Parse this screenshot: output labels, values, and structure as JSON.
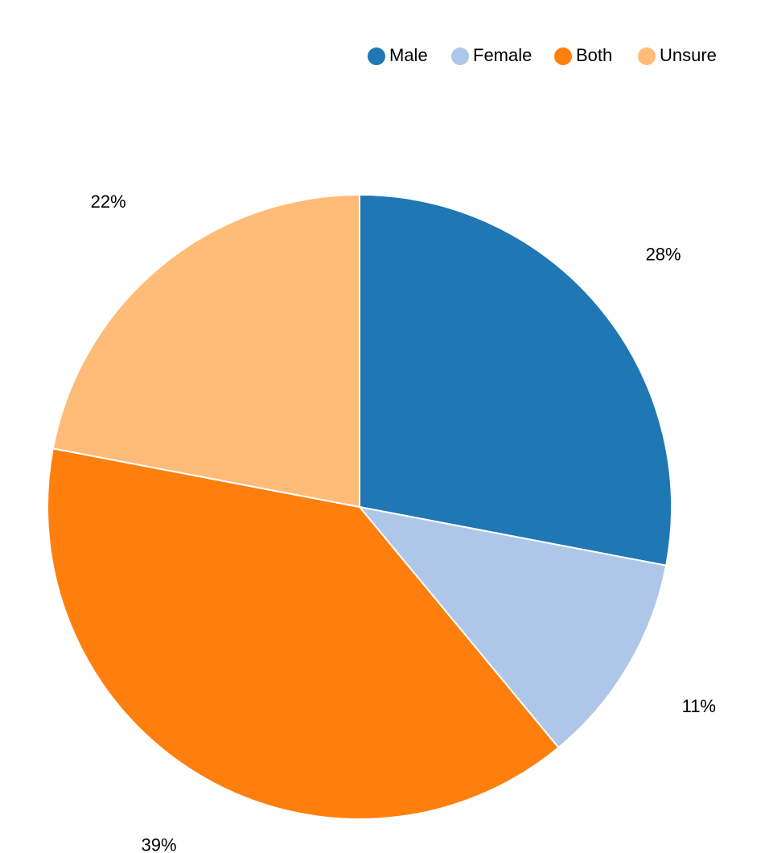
{
  "chart_data": {
    "type": "pie",
    "title": "",
    "legend_position": "top-right",
    "start_angle_deg": 0,
    "direction": "clockwise",
    "slices": [
      {
        "label": "Male",
        "value": 28,
        "display": "28%",
        "color": "#1f77b4"
      },
      {
        "label": "Female",
        "value": 11,
        "display": "11%",
        "color": "#aec7e8"
      },
      {
        "label": "Both",
        "value": 39,
        "display": "39%",
        "color": "#ff7f0e"
      },
      {
        "label": "Unsure",
        "value": 22,
        "display": "22%",
        "color": "#ffbb78"
      }
    ]
  }
}
